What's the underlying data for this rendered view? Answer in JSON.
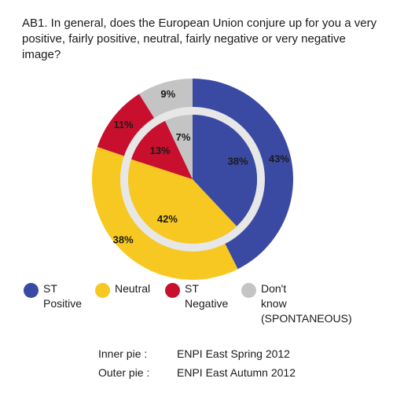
{
  "title": "AB1. In general, does the European Union conjure up for you a very positive, fairly positive, neutral, fairly negative or very negative image?",
  "colors": {
    "st_positive": "#3a4aa3",
    "neutral": "#f7c821",
    "st_negative": "#c8102e",
    "dont_know": "#c4c4c4",
    "ring_separator": "#e7e7e7"
  },
  "chart_data": {
    "type": "pie",
    "title": "AB1. In general, does the European Union conjure up for you a very positive, fairly positive, neutral, fairly negative or very negative image?",
    "categories": [
      "ST Positive",
      "Neutral",
      "ST Negative",
      "Don't know (SPONTANEOUS)"
    ],
    "series": [
      {
        "name": "ENPI East Spring 2012",
        "ring": "inner",
        "values": [
          38,
          42,
          13,
          7
        ],
        "labels": [
          "38%",
          "42%",
          "13%",
          "7%"
        ]
      },
      {
        "name": "ENPI East Autumn 2012",
        "ring": "outer",
        "values": [
          43,
          38,
          11,
          9
        ],
        "labels": [
          "43%",
          "38%",
          "11%",
          "9%"
        ]
      }
    ],
    "legend_position": "bottom",
    "grid": false
  },
  "legend": [
    {
      "label": "ST\nPositive",
      "color_key": "st_positive"
    },
    {
      "label": "Neutral",
      "color_key": "neutral"
    },
    {
      "label": "ST\nNegative",
      "color_key": "st_negative"
    },
    {
      "label": "Don't\nknow\n(SPONTANEOUS)",
      "color_key": "dont_know"
    }
  ],
  "notes": [
    {
      "label": "Inner pie :",
      "value": "ENPI East Spring 2012"
    },
    {
      "label": "Outer pie :",
      "value": "ENPI East Autumn 2012"
    }
  ]
}
